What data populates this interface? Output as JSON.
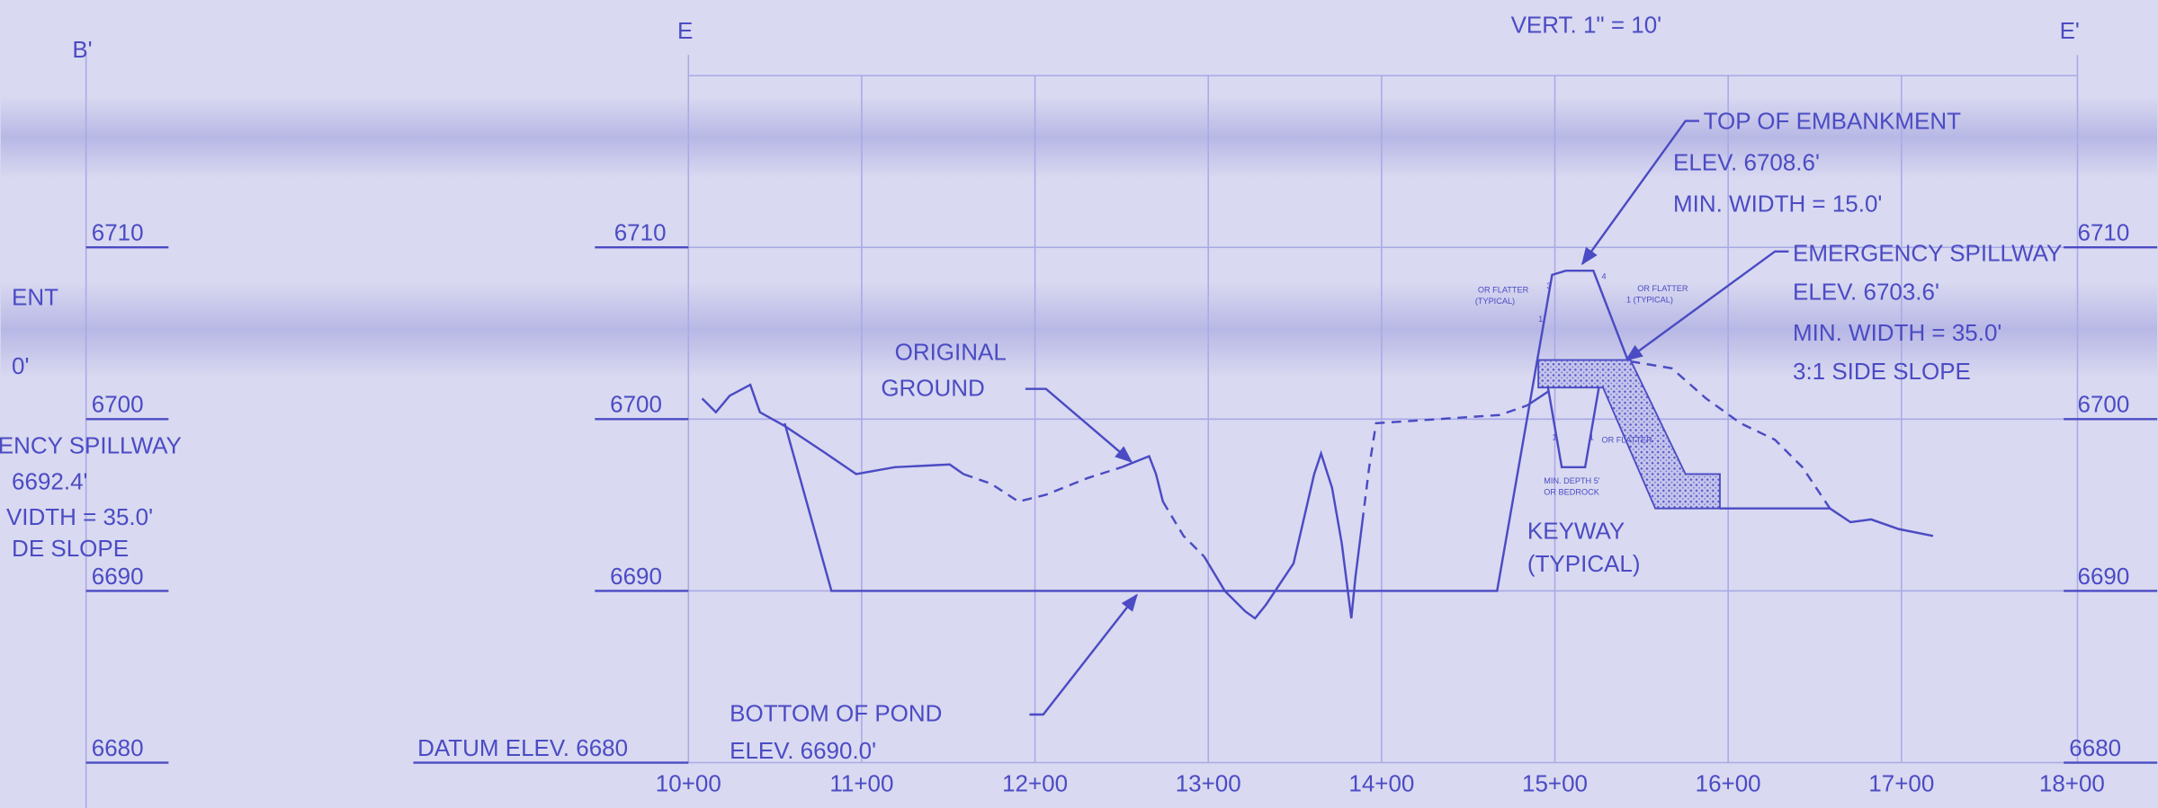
{
  "header": {
    "vertical_scale": "VERT. 1\" = 10'"
  },
  "sections": {
    "left": "B'",
    "start": "E",
    "end": "E'"
  },
  "left_partial": {
    "elevations": [
      "6710",
      "6700",
      "6690",
      "6680"
    ],
    "notes": [
      "ENT",
      "0'",
      "ENCY SPILLWAY",
      "6692.4'",
      "VIDTH = 35.0'",
      "DE SLOPE"
    ]
  },
  "elevations_left": [
    "6710",
    "6700",
    "6690"
  ],
  "datum": "DATUM ELEV. 6680",
  "elevations_right": [
    "6710",
    "6700",
    "6690",
    "6680"
  ],
  "stations": [
    "10+00",
    "11+00",
    "12+00",
    "13+00",
    "14+00",
    "15+00",
    "16+00",
    "17+00",
    "18+00"
  ],
  "annotations": {
    "top_of_embankment": [
      "TOP OF EMBANKMENT",
      "ELEV. 6708.6'",
      "MIN. WIDTH = 15.0'"
    ],
    "emergency_spillway": [
      "EMERGENCY SPILLWAY",
      "ELEV. 6703.6'",
      "MIN. WIDTH = 35.0'",
      "3:1 SIDE SLOPE"
    ],
    "original_ground": [
      "ORIGINAL",
      "GROUND"
    ],
    "keyway": [
      "KEYWAY",
      "(TYPICAL)"
    ],
    "bottom_of_pond": [
      "BOTTOM OF POND",
      "ELEV. 6690.0'"
    ],
    "small": [
      "OR FLATTER",
      "(TYPICAL)",
      "3",
      "1",
      "4",
      "OR FLATTER",
      "1 (TYPICAL)",
      "1",
      "1",
      "OR FLATTER",
      "MIN. DEPTH 5'",
      "OR BEDROCK"
    ]
  }
}
